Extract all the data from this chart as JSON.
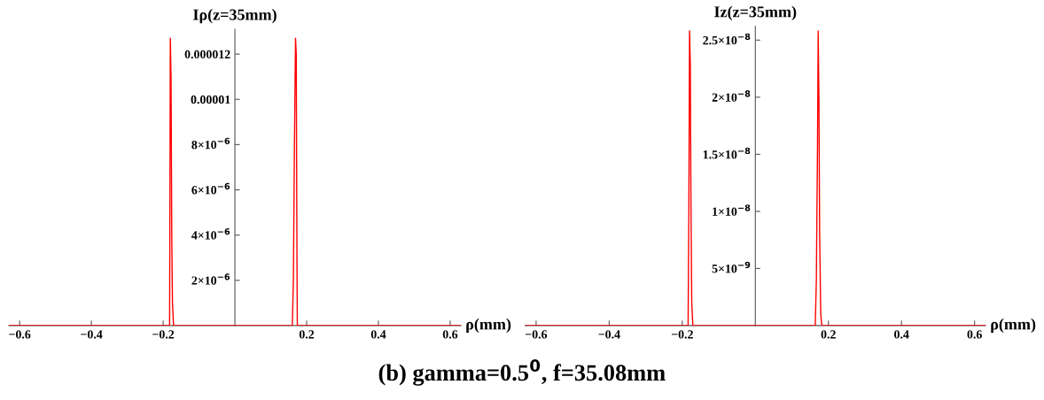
{
  "chart_data": [
    {
      "type": "line",
      "ylabel": "Iρ(z=35mm)",
      "xlabel": "ρ(mm)",
      "annotations": [
        "(b) gamma=0.5$^{0}$, f=35.08mm"
      ],
      "x": [
        -0.63,
        -0.4,
        -0.2,
        -0.185,
        -0.182,
        -0.181,
        -0.18,
        -0.178,
        -0.176,
        -0.174,
        -0.171,
        -0.168,
        -0.1,
        0.0,
        0.1,
        0.155,
        0.16,
        0.163,
        0.166,
        0.169,
        0.171,
        0.173,
        0.174,
        0.178,
        0.3,
        0.5,
        0.63
      ],
      "series": [
        {
          "color": "#ff0000",
          "values": [
            0,
            0,
            0,
            0,
            0,
            6e-06,
            1.27e-05,
            1.1e-05,
            4e-06,
            1e-06,
            0,
            0,
            0,
            0,
            0,
            0,
            0,
            2e-06,
            8e-06,
            1.27e-05,
            1.2e-05,
            3e-06,
            0,
            0,
            0,
            0,
            0
          ]
        }
      ],
      "xlim": [
        -0.63,
        0.63
      ],
      "ylim": [
        0,
        1.31e-05
      ],
      "xticks": [
        -0.6,
        -0.4,
        -0.2,
        0.2,
        0.4,
        0.6
      ],
      "yticks": [
        {
          "value": 2e-06,
          "label": "2×10$^{−6}$"
        },
        {
          "value": 4e-06,
          "label": "4×10$^{−6}$"
        },
        {
          "value": 6e-06,
          "label": "6×10$^{−6}$"
        },
        {
          "value": 8e-06,
          "label": "8×10$^{−6}$"
        },
        {
          "value": 1e-05,
          "label": "0.00001"
        },
        {
          "value": 1.2e-05,
          "label": "0.000012"
        }
      ]
    },
    {
      "type": "line",
      "ylabel": "Iz(z=35mm)",
      "xlabel": "ρ(mm)",
      "x": [
        -0.63,
        -0.4,
        -0.2,
        -0.186,
        -0.184,
        -0.182,
        -0.18,
        -0.178,
        -0.176,
        -0.174,
        -0.171,
        -0.168,
        -0.1,
        0.0,
        0.1,
        0.16,
        0.164,
        0.167,
        0.17,
        0.172,
        0.174,
        0.176,
        0.179,
        0.182,
        0.3,
        0.5,
        0.63
      ],
      "series": [
        {
          "color": "#ff0000",
          "values": [
            0,
            0,
            0,
            0,
            0,
            1e-08,
            2.58e-08,
            2.3e-08,
            1e-08,
            2e-09,
            0,
            0,
            0,
            0,
            0,
            0,
            0,
            4e-09,
            1.5e-08,
            2.58e-08,
            2e-08,
            8e-09,
            1e-09,
            0,
            0,
            0,
            0
          ]
        }
      ],
      "xlim": [
        -0.63,
        0.63
      ],
      "ylim": [
        0,
        2.62e-08
      ],
      "xticks": [
        -0.6,
        -0.4,
        -0.2,
        0.2,
        0.4,
        0.6
      ],
      "yticks": [
        {
          "value": 5e-09,
          "label": "5×10$^{−9}$"
        },
        {
          "value": 1e-08,
          "label": "1×10$^{−8}$"
        },
        {
          "value": 1.5e-08,
          "label": "1.5×10$^{−8}$"
        },
        {
          "value": 2e-08,
          "label": "2×10$^{−8}$"
        },
        {
          "value": 2.5e-08,
          "label": "2.5×10$^{−8}$"
        }
      ]
    }
  ]
}
